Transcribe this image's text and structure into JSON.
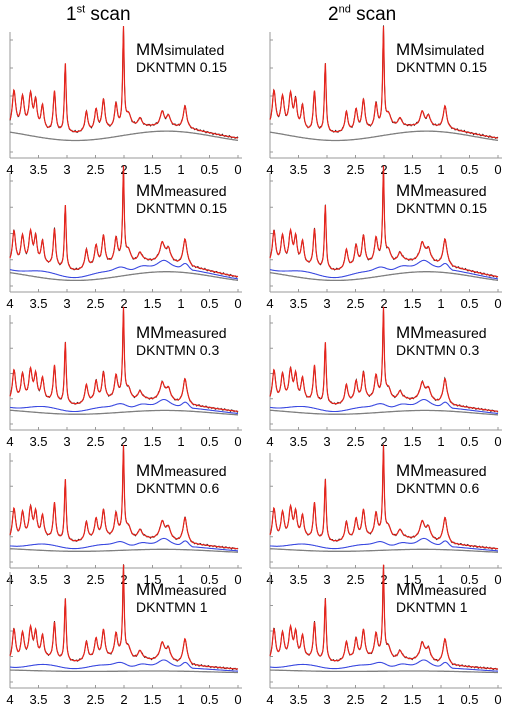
{
  "header": {
    "col1_base": "1",
    "col1_sup": "st",
    "col1_rest": " scan",
    "col2_base": "2",
    "col2_sup": "nd",
    "col2_rest": " scan"
  },
  "colors": {
    "fit": "#e8231b",
    "measured": "#1a1a1a",
    "macromolecule": "#3a49e0",
    "baseline": "#808080"
  },
  "chart_data": {
    "type": "line",
    "x_axis": {
      "ticks": [
        4,
        3.5,
        3,
        2.5,
        2,
        1.5,
        1,
        0.5,
        0
      ],
      "tick_labels": [
        "4",
        "3.5",
        "3",
        "2.5",
        "2",
        "1.5",
        "1",
        "0.5",
        "0"
      ],
      "xlim": [
        4,
        0
      ],
      "reversed": true
    },
    "y_axis": {
      "ticks_shown": false,
      "ylim": [
        0,
        1
      ]
    },
    "peaks": [
      {
        "ppm": 3.93,
        "height": 0.36,
        "width": 0.035
      },
      {
        "ppm": 3.78,
        "height": 0.3,
        "width": 0.035
      },
      {
        "ppm": 3.64,
        "height": 0.33,
        "width": 0.035
      },
      {
        "ppm": 3.55,
        "height": 0.27,
        "width": 0.03
      },
      {
        "ppm": 3.43,
        "height": 0.24,
        "width": 0.03
      },
      {
        "ppm": 3.22,
        "height": 0.4,
        "width": 0.025
      },
      {
        "ppm": 3.03,
        "height": 0.68,
        "width": 0.018
      },
      {
        "ppm": 2.66,
        "height": 0.2,
        "width": 0.03
      },
      {
        "ppm": 2.49,
        "height": 0.21,
        "width": 0.03
      },
      {
        "ppm": 2.36,
        "height": 0.3,
        "width": 0.03
      },
      {
        "ppm": 2.14,
        "height": 0.24,
        "width": 0.03
      },
      {
        "ppm": 2.01,
        "height": 0.96,
        "width": 0.016
      },
      {
        "ppm": 1.92,
        "height": 0.12,
        "width": 0.05
      },
      {
        "ppm": 1.72,
        "height": 0.08,
        "width": 0.04
      },
      {
        "ppm": 1.33,
        "height": 0.14,
        "width": 0.04
      },
      {
        "ppm": 1.22,
        "height": 0.1,
        "width": 0.04
      },
      {
        "ppm": 0.93,
        "height": 0.22,
        "width": 0.035
      }
    ],
    "series": [
      {
        "name": "measured",
        "color": "#1a1a1a"
      },
      {
        "name": "fit",
        "color": "#e8231b"
      },
      {
        "name": "macromolecule",
        "color": "#3a49e0"
      },
      {
        "name": "baseline",
        "color": "#808080"
      }
    ],
    "panels": [
      {
        "row": 1,
        "col": 1,
        "label_main": "MMsimulated",
        "label_sub": "DKNTMN 0.15",
        "mm_curve": false,
        "baseline_level": 0.09,
        "baseline_amp": 0.05
      },
      {
        "row": 1,
        "col": 2,
        "label_main": "MMsimulated",
        "label_sub": "DKNTMN 0.15",
        "mm_curve": false,
        "baseline_level": 0.09,
        "baseline_amp": 0.05
      },
      {
        "row": 2,
        "col": 1,
        "label_main": "MMmeasured",
        "label_sub": "DKNTMN 0.15",
        "mm_curve": true,
        "baseline_level": 0.03,
        "baseline_amp": 0.05
      },
      {
        "row": 2,
        "col": 2,
        "label_main": "MMmeasured",
        "label_sub": "DKNTMN 0.15",
        "mm_curve": true,
        "baseline_level": 0.03,
        "baseline_amp": 0.05
      },
      {
        "row": 3,
        "col": 1,
        "label_main": "MMmeasured",
        "label_sub": "DKNTMN 0.3",
        "mm_curve": true,
        "baseline_level": 0.05,
        "baseline_amp": 0.025
      },
      {
        "row": 3,
        "col": 2,
        "label_main": "MMmeasured",
        "label_sub": "DKNTMN 0.3",
        "mm_curve": true,
        "baseline_level": 0.05,
        "baseline_amp": 0.025
      },
      {
        "row": 4,
        "col": 1,
        "label_main": "MMmeasured",
        "label_sub": "DKNTMN 0.6",
        "mm_curve": true,
        "baseline_level": 0.05,
        "baseline_amp": 0.015
      },
      {
        "row": 4,
        "col": 2,
        "label_main": "MMmeasured",
        "label_sub": "DKNTMN 0.6",
        "mm_curve": true,
        "baseline_level": 0.05,
        "baseline_amp": 0.015
      },
      {
        "row": 5,
        "col": 1,
        "label_main": "MMmeasured",
        "label_sub": "DKNTMN 1",
        "mm_curve": true,
        "baseline_level": 0.04,
        "baseline_amp": 0.006
      },
      {
        "row": 5,
        "col": 2,
        "label_main": "MMmeasured",
        "label_sub": "DKNTMN 1",
        "mm_curve": true,
        "baseline_level": 0.04,
        "baseline_amp": 0.006
      }
    ]
  }
}
